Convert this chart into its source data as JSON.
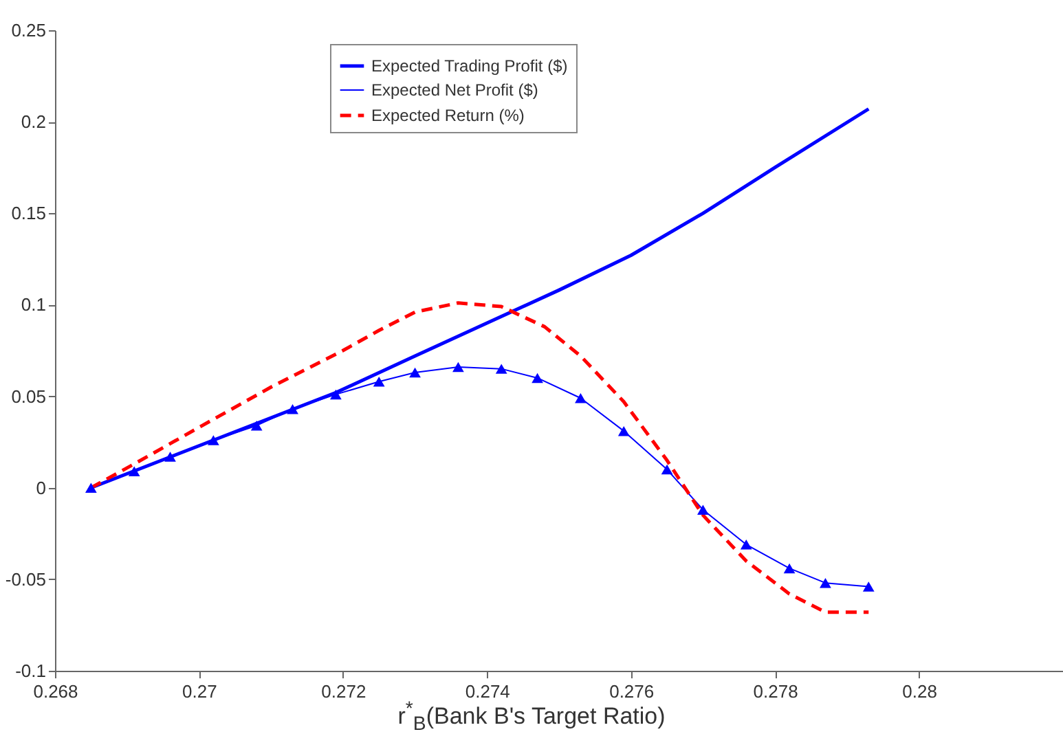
{
  "chart_data": {
    "type": "line",
    "xlabel": "r$^{*}$$_{B}$(Bank B's Target Ratio)",
    "xlim": [
      0.268,
      0.282
    ],
    "xticks": [
      0.268,
      0.27,
      0.272,
      0.274,
      0.276,
      0.278,
      0.28
    ],
    "ylim": [
      -0.1,
      0.25
    ],
    "yticks": [
      -0.1,
      -0.05,
      0,
      0.05,
      0.1,
      0.15,
      0.2,
      0.25
    ],
    "legend": "top",
    "grid": false,
    "series": [
      {
        "name": "Expected Trading Profit ($)",
        "color": "#0000ff",
        "line_style": "solid",
        "marker": "none",
        "x": [
          0.2685,
          0.2702,
          0.2719,
          0.273,
          0.274,
          0.275,
          0.276,
          0.277,
          0.278,
          0.2793
        ],
        "values": [
          0,
          0.026,
          0.052,
          0.072,
          0.09,
          0.108,
          0.127,
          0.15,
          0.175,
          0.207
        ]
      },
      {
        "name": "Expected Net Profit ($)",
        "color": "#0000ff",
        "line_style": "solid",
        "marker": "triangle",
        "x": [
          0.2685,
          0.2691,
          0.2696,
          0.2702,
          0.2708,
          0.2713,
          0.2719,
          0.2725,
          0.273,
          0.2736,
          0.2742,
          0.2747,
          0.2753,
          0.2759,
          0.2765,
          0.277,
          0.2776,
          0.2782,
          0.2787,
          0.2793
        ],
        "values": [
          0,
          0.009,
          0.017,
          0.026,
          0.034,
          0.043,
          0.051,
          0.058,
          0.063,
          0.066,
          0.065,
          0.06,
          0.049,
          0.031,
          0.01,
          -0.012,
          -0.031,
          -0.044,
          -0.052,
          -0.054
        ]
      },
      {
        "name": "Expected Return (%)",
        "color": "#ff0000",
        "line_style": "dashed",
        "marker": "none",
        "x": [
          0.2685,
          0.2691,
          0.27,
          0.271,
          0.272,
          0.2725,
          0.273,
          0.2736,
          0.2742,
          0.2748,
          0.2753,
          0.2759,
          0.2765,
          0.277,
          0.2776,
          0.2782,
          0.2787,
          0.2793
        ],
        "values": [
          0,
          0.013,
          0.033,
          0.055,
          0.075,
          0.086,
          0.096,
          0.101,
          0.099,
          0.088,
          0.072,
          0.047,
          0.015,
          -0.015,
          -0.04,
          -0.058,
          -0.068,
          -0.068
        ]
      }
    ]
  }
}
